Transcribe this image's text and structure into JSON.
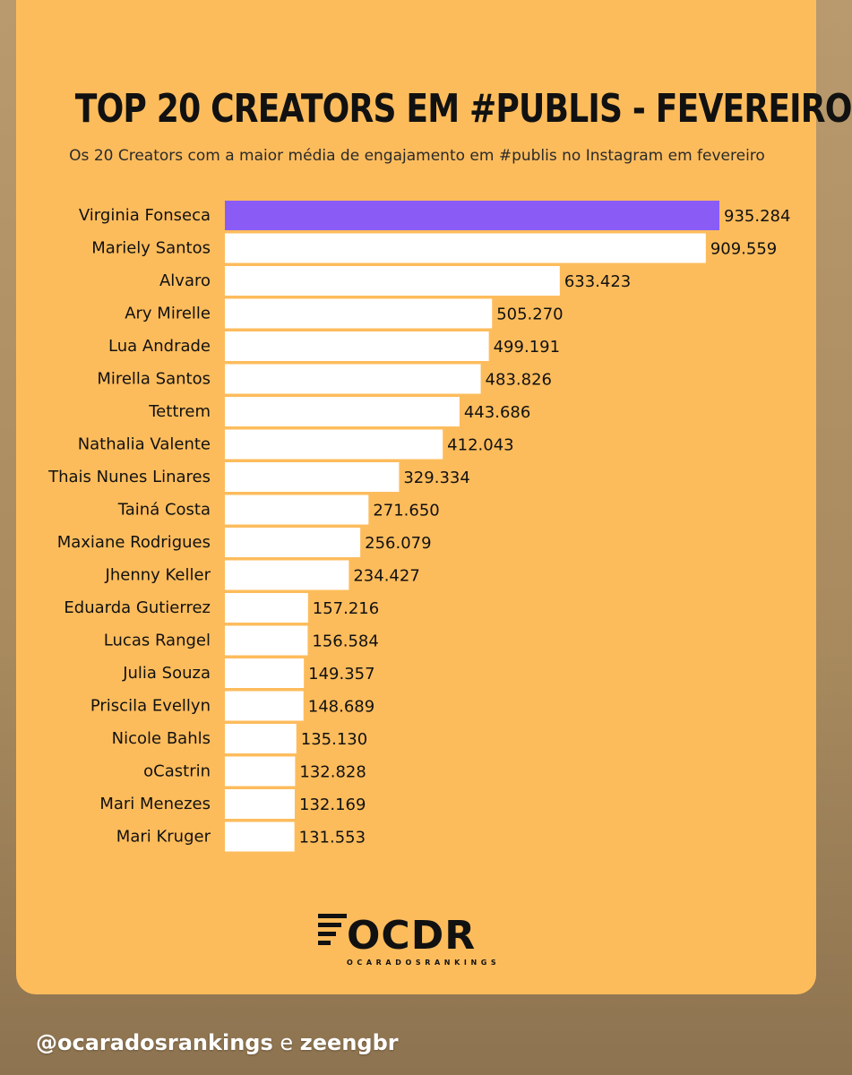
{
  "chart_data": {
    "type": "bar",
    "orientation": "horizontal",
    "title": "TOP 20 CREATORS EM #PUBLIS - FEVEREIRO",
    "subtitle": "Os 20 Creators com a maior média de engajamento em #publis no Instagram em fevereiro",
    "categories": [
      "Virginia Fonseca",
      "Mariely Santos",
      "Alvaro",
      "Ary Mirelle",
      "Lua Andrade",
      "Mirella Santos",
      "Tettrem",
      "Nathalia Valente",
      "Thais Nunes Linares",
      "Tainá Costa",
      "Maxiane Rodrigues",
      "Jhenny Keller",
      "Eduarda Gutierrez",
      "Lucas Rangel",
      "Julia Souza",
      "Priscila Evellyn",
      "Nicole Bahls",
      "oCastrin",
      "Mari Menezes",
      "Mari Kruger"
    ],
    "values": [
      935284,
      909559,
      633423,
      505270,
      499191,
      483826,
      443686,
      412043,
      329334,
      271650,
      256079,
      234427,
      157216,
      156584,
      149357,
      148689,
      135130,
      132828,
      132169,
      131553
    ],
    "value_labels": [
      "935.284",
      "909.559",
      "633.423",
      "505.270",
      "499.191",
      "483.826",
      "443.686",
      "412.043",
      "329.334",
      "271.650",
      "256.079",
      "234.427",
      "157.216",
      "156.584",
      "149.357",
      "148.689",
      "135.130",
      "132.828",
      "132.169",
      "131.553"
    ],
    "highlight_index": 0,
    "colors": {
      "background": "#fdbc5c",
      "bar": "#ffffff",
      "highlight_bar": "#8a5cf5",
      "text": "#111111"
    },
    "grid": false,
    "legend": "none"
  },
  "branding": {
    "logo_icon": "ocdr-logo-icon",
    "logo_text": "OCDR",
    "logo_subtext": "OCARADOSRANKINGS"
  },
  "footer": {
    "handle": "@ocaradosrankings",
    "connector": "e",
    "partner": "zeengbr"
  }
}
